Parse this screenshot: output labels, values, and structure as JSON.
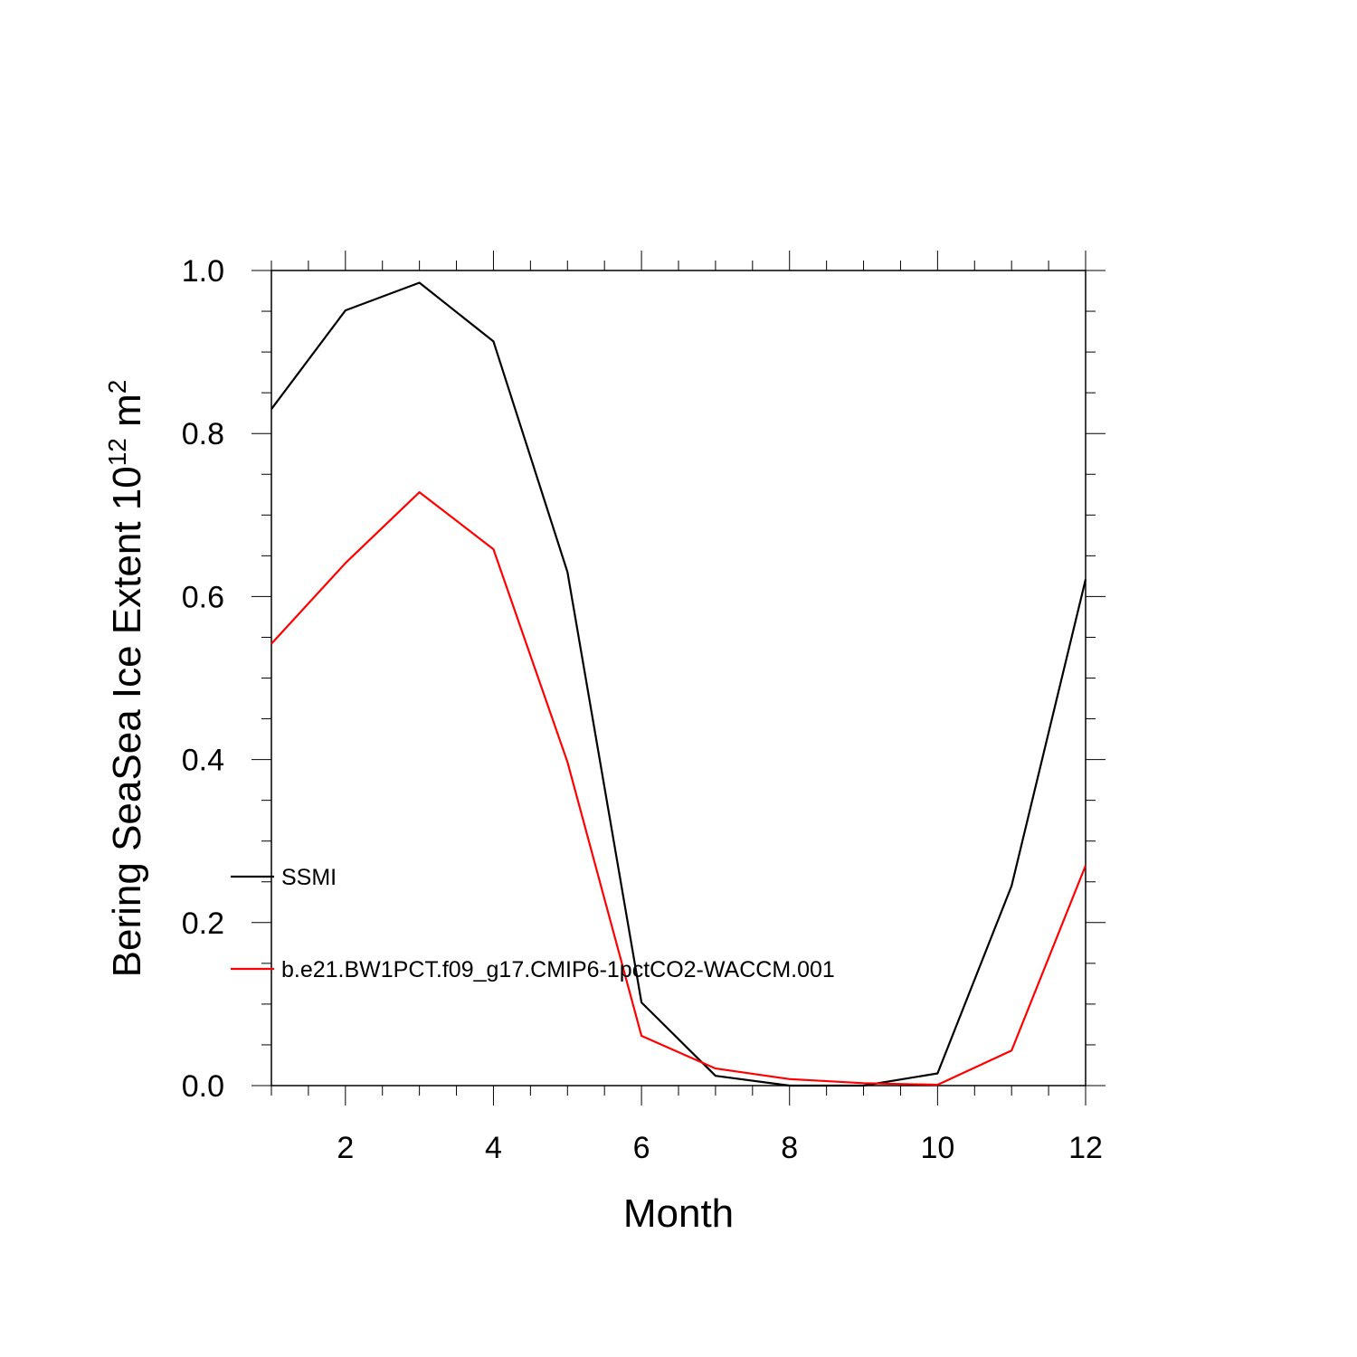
{
  "chart_data": {
    "type": "line",
    "xlabel": "Month",
    "ylabel": {
      "prefix": "Bering SeaSea Ice Extent 10",
      "exponent": "12",
      "unit": " m",
      "unit_exponent": "2"
    },
    "xlim": [
      1,
      12
    ],
    "ylim": [
      0,
      1.0
    ],
    "x_ticks": [
      2,
      4,
      6,
      8,
      10,
      12
    ],
    "x_tick_labels": [
      "2",
      "4",
      "6",
      "8",
      "10",
      "12"
    ],
    "y_ticks": [
      0,
      0.2,
      0.4,
      0.6,
      0.8,
      1.0
    ],
    "y_tick_labels": [
      "0.0",
      "0.2",
      "0.4",
      "0.6",
      "0.8",
      "1.0"
    ],
    "grid": false,
    "legend_position": "left, inside lower half of plot",
    "x": [
      1,
      2,
      3,
      4,
      5,
      6,
      7,
      8,
      9,
      10,
      11,
      12
    ],
    "series": [
      {
        "name": "SSMI",
        "color": "#000000",
        "values": [
          0.83,
          0.951,
          0.985,
          0.913,
          0.63,
          0.102,
          0.012,
          0.0,
          0.0,
          0.015,
          0.245,
          0.621
        ]
      },
      {
        "name": "b.e21.BW1PCT.f09_g17.CMIP6-1pctCO2-WACCM.001",
        "color": "#ff0000",
        "values": [
          0.542,
          0.641,
          0.728,
          0.658,
          0.397,
          0.061,
          0.021,
          0.008,
          0.003,
          0.001,
          0.043,
          0.27
        ]
      }
    ]
  }
}
